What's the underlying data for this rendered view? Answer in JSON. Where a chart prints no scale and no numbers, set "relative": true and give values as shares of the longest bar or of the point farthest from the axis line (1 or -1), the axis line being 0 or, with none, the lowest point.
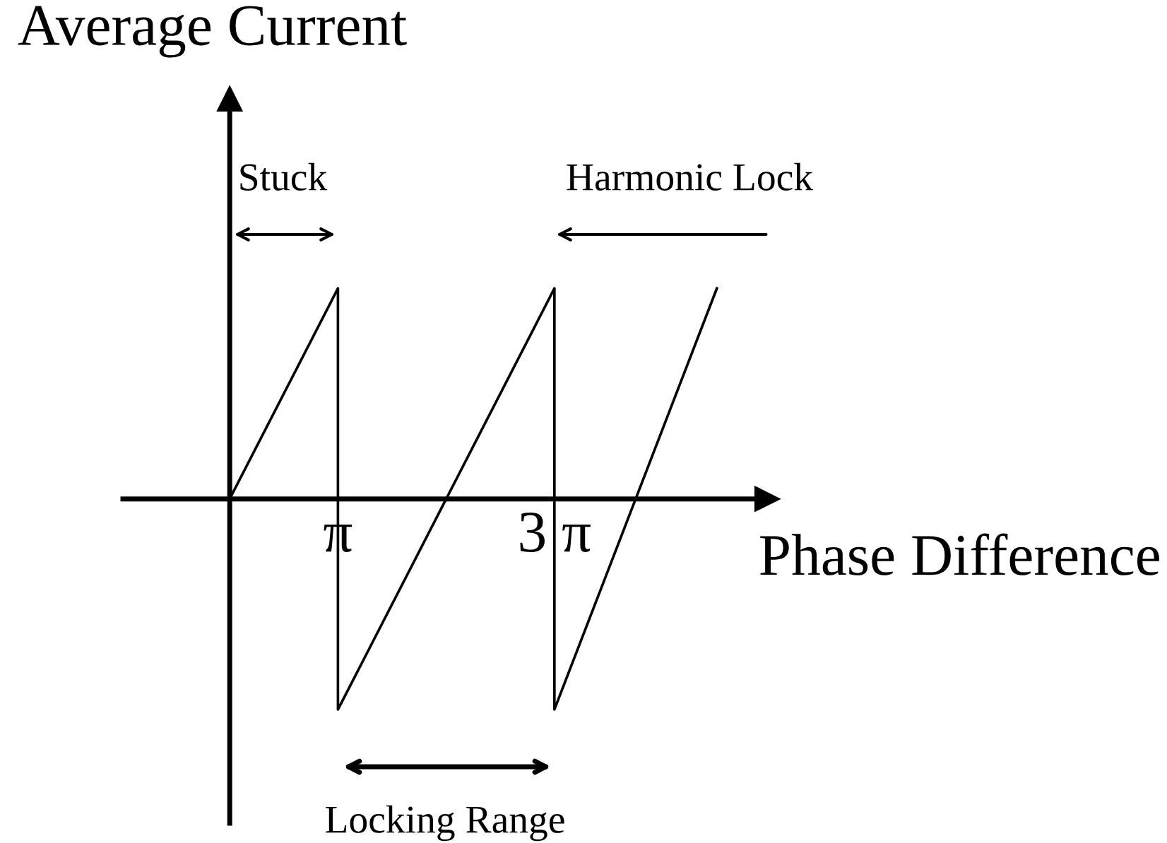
{
  "chart_data": {
    "type": "line",
    "relative": true,
    "xlabel": "Phase Difference",
    "ylabel": "Average Current",
    "x": [
      0,
      3.1416,
      3.1416,
      9.4248,
      9.4248,
      14.14
    ],
    "series": [
      {
        "color": "#000000",
        "values": [
          0,
          1,
          -1,
          1,
          -1,
          1
        ]
      }
    ],
    "xlim": [
      -3.1,
      15.6
    ],
    "xticks": [
      {
        "value": 3.1416,
        "label": "π"
      },
      {
        "value": 9.4248,
        "label": "3 π"
      }
    ],
    "annotations": [
      "Stuck",
      "Harmonic Lock",
      "Locking Range"
    ],
    "grid": false,
    "legend": false,
    "marker": "none",
    "line_style": "solid"
  }
}
